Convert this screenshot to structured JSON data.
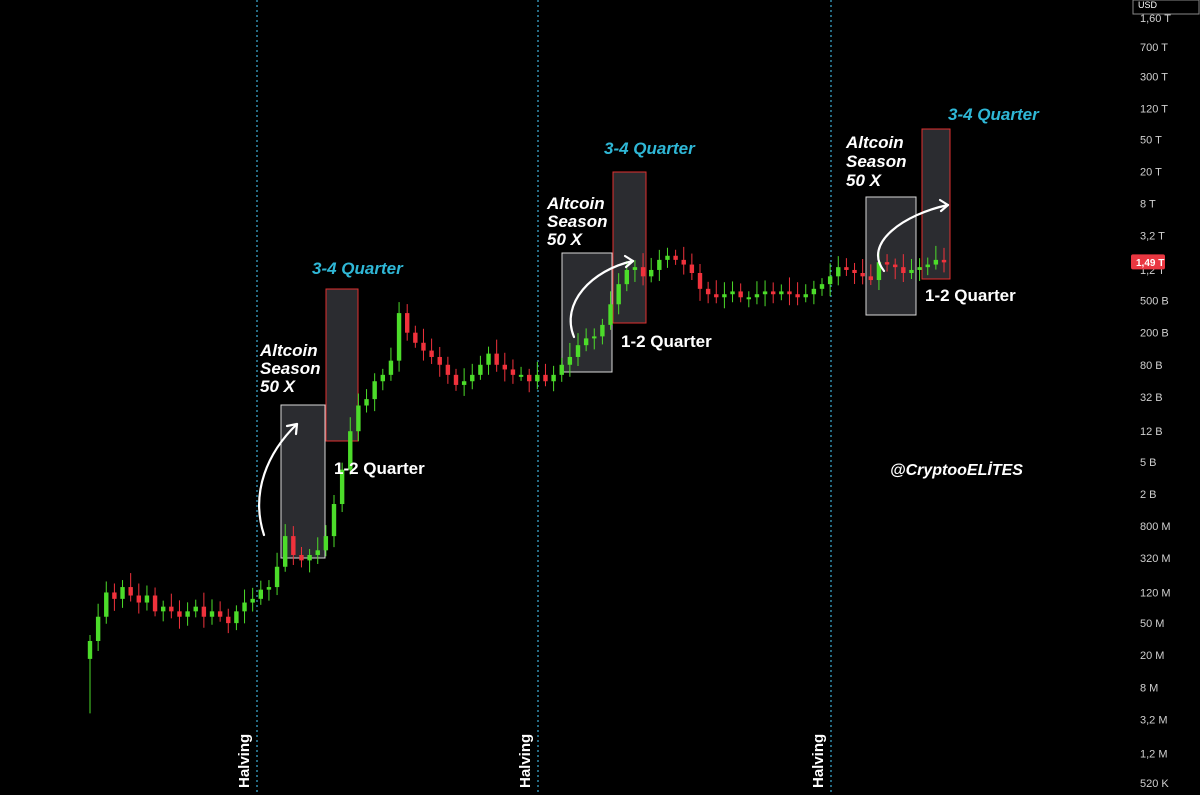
{
  "chart_data": {
    "type": "candlestick",
    "currency": "USD",
    "y_scale": "log",
    "y_ticks": [
      "1,60 T",
      "700 T",
      "300 T",
      "120 T",
      "50 T",
      "20 T",
      "8 T",
      "3,2 T",
      "1,2 T",
      "500 B",
      "200 B",
      "80 B",
      "32 B",
      "12 B",
      "5 B",
      "2 B",
      "800 M",
      "320 M",
      "120 M",
      "50 M",
      "20 M",
      "8 M",
      "3,2 M",
      "1,2 M",
      "520 K"
    ],
    "y_tick_values": [
      1600000000000000.0,
      700000000000000.0,
      300000000000000.0,
      120000000000000.0,
      50000000000000.0,
      20000000000000.0,
      8000000000000.0,
      3200000000000.0,
      1200000000000.0,
      500000000000.0,
      200000000000.0,
      80000000000.0,
      32000000000.0,
      12000000000.0,
      5000000000.0,
      2000000000.0,
      800000000.0,
      320000000.0,
      120000000.0,
      50000000.0,
      20000000.0,
      8000000.0,
      3200000.0,
      1200000.0,
      520000.0
    ],
    "current_price_label": "1,49 T",
    "current_price_value": 1490000000000.0,
    "candle_values": [
      30000000.0,
      60000000.0,
      120000000.0,
      100000000.0,
      140000000.0,
      110000000.0,
      90000000.0,
      110000000.0,
      70000000.0,
      80000000.0,
      70000000.0,
      60000000.0,
      70000000.0,
      80000000.0,
      60000000.0,
      70000000.0,
      60000000.0,
      50000000.0,
      70000000.0,
      90000000.0,
      100000000.0,
      130000000.0,
      140000000.0,
      250000000.0,
      600000000.0,
      350000000.0,
      300000000.0,
      350000000.0,
      400000000.0,
      600000000.0,
      1500000000.0,
      4000000000.0,
      12000000000.0,
      25000000000.0,
      30000000000.0,
      50000000000.0,
      60000000000.0,
      90000000000.0,
      350000000000.0,
      200000000000.0,
      150000000000.0,
      120000000000.0,
      100000000000.0,
      80000000000.0,
      60000000000.0,
      45000000000.0,
      50000000000.0,
      60000000000.0,
      80000000000.0,
      110000000000.0,
      80000000000.0,
      70000000000.0,
      60000000000.0,
      60000000000.0,
      50000000000.0,
      60000000000.0,
      50000000000.0,
      60000000000.0,
      80000000000.0,
      100000000000.0,
      140000000000.0,
      170000000000.0,
      180000000000.0,
      250000000000.0,
      450000000000.0,
      800000000000.0,
      1200000000000.0,
      1300000000000.0,
      1000000000000.0,
      1200000000000.0,
      1600000000000.0,
      1800000000000.0,
      1600000000000.0,
      1400000000000.0,
      1100000000000.0,
      700000000000.0,
      600000000000.0,
      550000000000.0,
      600000000000.0,
      650000000000.0,
      550000000000.0,
      550000000000.0,
      600000000000.0,
      650000000000.0,
      600000000000.0,
      650000000000.0,
      600000000000.0,
      550000000000.0,
      600000000000.0,
      700000000000.0,
      800000000000.0,
      1000000000000.0,
      1300000000000.0,
      1200000000000.0,
      1100000000000.0,
      1000000000000.0,
      900000000000.0,
      1500000000000.0,
      1400000000000.0,
      1300000000000.0,
      1100000000000.0,
      1200000000000.0,
      1300000000000.0,
      1400000000000.0,
      1600000000000.0,
      1490000000000.0
    ],
    "vertical_lines": [
      {
        "label": "Halving"
      },
      {
        "label": "Halving"
      },
      {
        "label": "Halving"
      }
    ],
    "annotations": [
      {
        "lines": [
          "Altcoin",
          "Season",
          "50 X"
        ]
      },
      {
        "text": "3-4 Quarter"
      },
      {
        "text": "1-2 Quarter"
      },
      {
        "lines": [
          "Altcoin",
          "Season",
          "50 X"
        ]
      },
      {
        "text": "3-4 Quarter"
      },
      {
        "text": "1-2 Quarter"
      },
      {
        "lines": [
          "Altcoin",
          "Season",
          "50 X"
        ]
      },
      {
        "text": "3-4 Quarter"
      },
      {
        "text": "1-2 Quarter"
      }
    ],
    "watermark": "@CryptooELİTES",
    "colors": {
      "up": "#4cdc2a",
      "down": "#f0323c",
      "halving_line": "#3aa3c9",
      "box_fill": "#2b2c30",
      "box_white_border": "#d9d9d9",
      "box_red_border": "#e0312f",
      "cyan_text": "#2fb7d6",
      "price_tag": "#e93741"
    }
  }
}
